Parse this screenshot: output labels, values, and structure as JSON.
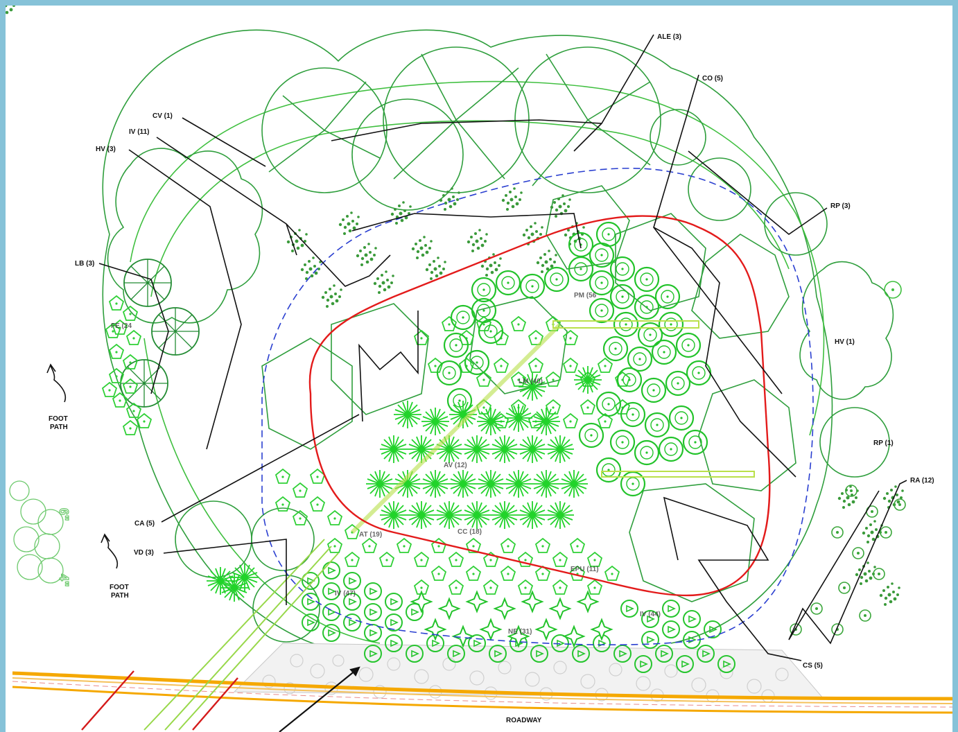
{
  "plan": {
    "plant_labels": [
      {
        "id": "ALE",
        "text": "ALE (3)"
      },
      {
        "id": "CO",
        "text": "CO (5)"
      },
      {
        "id": "CV",
        "text": "CV (1)"
      },
      {
        "id": "IV11",
        "text": "IV (11)"
      },
      {
        "id": "HV3",
        "text": "HV (3)"
      },
      {
        "id": "RP3",
        "text": "RP (3)"
      },
      {
        "id": "LB",
        "text": "LB (3)"
      },
      {
        "id": "PM",
        "text": "PM (56"
      },
      {
        "id": "FE",
        "text": "FE (24"
      },
      {
        "id": "HV1",
        "text": "HV (1)"
      },
      {
        "id": "LM",
        "text": "LM (40)"
      },
      {
        "id": "RP1",
        "text": "RP (1)"
      },
      {
        "id": "AV",
        "text": "AV (12)"
      },
      {
        "id": "RA",
        "text": "RA (12)"
      },
      {
        "id": "CA",
        "text": "CA (5)"
      },
      {
        "id": "VD",
        "text": "VD (3)"
      },
      {
        "id": "AT",
        "text": "AT (19)"
      },
      {
        "id": "CC",
        "text": "CC (18)"
      },
      {
        "id": "EPU",
        "text": "EPU (11)"
      },
      {
        "id": "IV47",
        "text": "IV (47)"
      },
      {
        "id": "IV44",
        "text": "IV (44)"
      },
      {
        "id": "NE",
        "text": "NE (31)"
      },
      {
        "id": "CS",
        "text": "CS (5)"
      }
    ],
    "foot_path_label": [
      "FOOT",
      "PATH"
    ],
    "roadway_label": "ROADWAY",
    "dimension_labels": [
      "6\"",
      "4\""
    ],
    "colors": {
      "background": "#86c2d8",
      "tree_outline": "#2e9e3c",
      "shrub": "#22c32a",
      "boundary": "#e31b1b",
      "dashed_boundary": "#2a3fd0",
      "road_edge": "#f5a800",
      "leader": "#111111"
    }
  }
}
